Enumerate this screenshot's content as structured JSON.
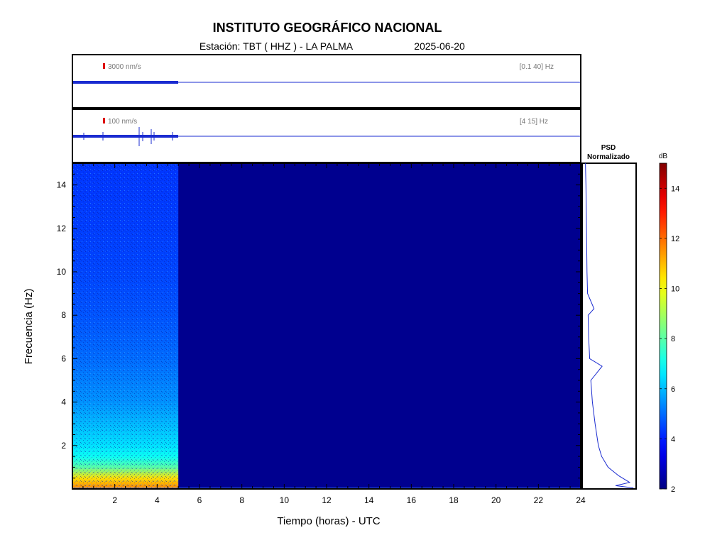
{
  "header": {
    "title": "INSTITUTO GEOGRÁFICO NACIONAL",
    "station_line": "Estación:  TBT ( HHZ ) - LA PALMA",
    "date": "2025-06-20"
  },
  "trace_panels": [
    {
      "scale_label": "3000 nm/s",
      "band_label": "[0.1 40] Hz",
      "scale_color": "#dd0000"
    },
    {
      "scale_label": "100 nm/s",
      "band_label": "[4 15] Hz",
      "scale_color": "#dd0000"
    }
  ],
  "psd": {
    "title_line1": "PSD",
    "title_line2": "Normalizado"
  },
  "colorbar": {
    "unit": "dB",
    "min": 2,
    "max": 15,
    "ticks": [
      "2",
      "4",
      "6",
      "8",
      "10",
      "12",
      "14"
    ]
  },
  "chart_data": {
    "type": "heatmap",
    "title": "INSTITUTO GEOGRÁFICO NACIONAL",
    "xlabel": "Tiempo (horas) - UTC",
    "ylabel": "Frecuencia  (Hz)",
    "xlim": [
      0,
      24
    ],
    "ylim": [
      0,
      15
    ],
    "x_ticks": [
      "2",
      "4",
      "6",
      "8",
      "10",
      "12",
      "14",
      "16",
      "18",
      "20",
      "22",
      "24"
    ],
    "y_ticks": [
      "2",
      "4",
      "6",
      "8",
      "10",
      "12",
      "14"
    ],
    "data_end_hour": 5,
    "background_db": 2,
    "spectrum_profile": [
      {
        "f": 0.1,
        "db": 11.5
      },
      {
        "f": 0.5,
        "db": 10.5
      },
      {
        "f": 1.0,
        "db": 8.0
      },
      {
        "f": 1.5,
        "db": 7.0
      },
      {
        "f": 2.0,
        "db": 6.5
      },
      {
        "f": 3.0,
        "db": 6.0
      },
      {
        "f": 4.0,
        "db": 5.5
      },
      {
        "f": 6.0,
        "db": 5.0
      },
      {
        "f": 8.0,
        "db": 4.7
      },
      {
        "f": 10.0,
        "db": 4.5
      },
      {
        "f": 12.0,
        "db": 4.4
      },
      {
        "f": 15.0,
        "db": 4.3
      }
    ],
    "psd_profile": [
      {
        "f": 0.05,
        "p": 0.95
      },
      {
        "f": 0.15,
        "p": 0.62
      },
      {
        "f": 0.3,
        "p": 0.88
      },
      {
        "f": 0.6,
        "p": 0.68
      },
      {
        "f": 1.0,
        "p": 0.48
      },
      {
        "f": 1.5,
        "p": 0.36
      },
      {
        "f": 2.0,
        "p": 0.3
      },
      {
        "f": 3.0,
        "p": 0.24
      },
      {
        "f": 4.0,
        "p": 0.19
      },
      {
        "f": 5.0,
        "p": 0.16
      },
      {
        "f": 5.65,
        "p": 0.37
      },
      {
        "f": 6.0,
        "p": 0.14
      },
      {
        "f": 7.0,
        "p": 0.12
      },
      {
        "f": 8.0,
        "p": 0.11
      },
      {
        "f": 8.3,
        "p": 0.22
      },
      {
        "f": 9.0,
        "p": 0.1
      },
      {
        "f": 10.0,
        "p": 0.09
      },
      {
        "f": 12.0,
        "p": 0.08
      },
      {
        "f": 14.0,
        "p": 0.07
      },
      {
        "f": 15.0,
        "p": 0.06
      }
    ]
  }
}
